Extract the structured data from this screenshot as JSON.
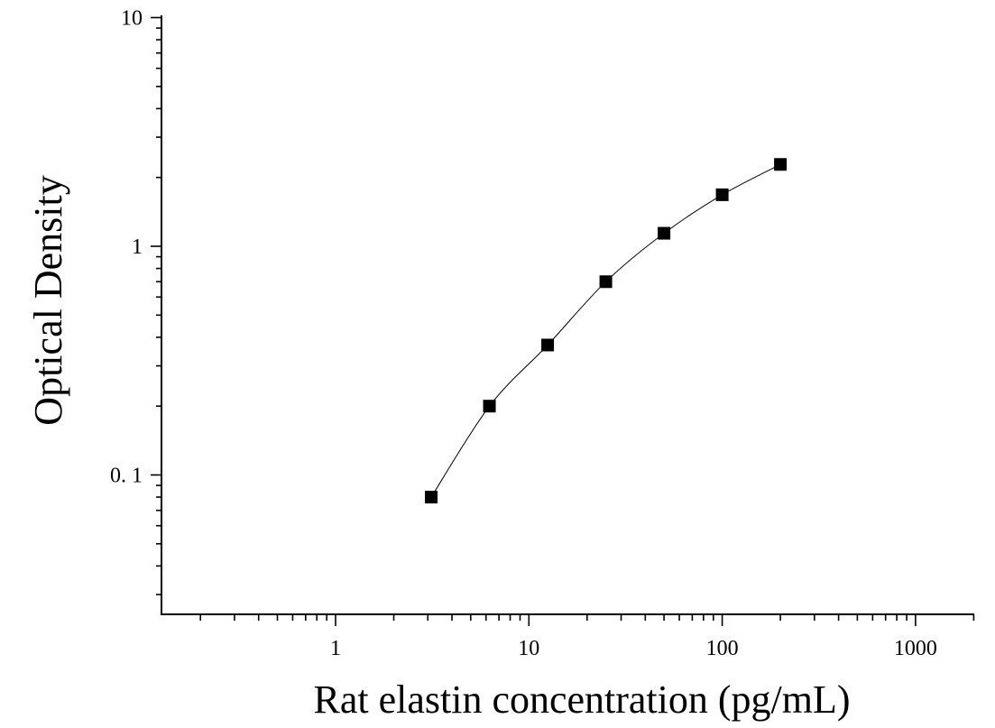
{
  "chart_data": {
    "type": "scatter",
    "xlabel": "Rat elastin concentration (pg/mL)",
    "ylabel": "Optical Density",
    "xscale": "log",
    "yscale": "log",
    "xlim": [
      0.1,
      2000
    ],
    "ylim": [
      0.025,
      10
    ],
    "x_tick_labels": [
      "1",
      "10",
      "100",
      "1000"
    ],
    "y_tick_labels": [
      "0. 1",
      "1",
      "10"
    ],
    "grid": false,
    "legend": "none",
    "series": [
      {
        "marker": "square",
        "color": "#000000",
        "x": [
          3.125,
          6.25,
          12.5,
          25,
          50,
          100,
          200
        ],
        "y": [
          0.08,
          0.2,
          0.37,
          0.7,
          1.14,
          1.68,
          2.28
        ]
      }
    ],
    "fit_curve": {
      "type": "smooth",
      "color": "#000000"
    }
  }
}
